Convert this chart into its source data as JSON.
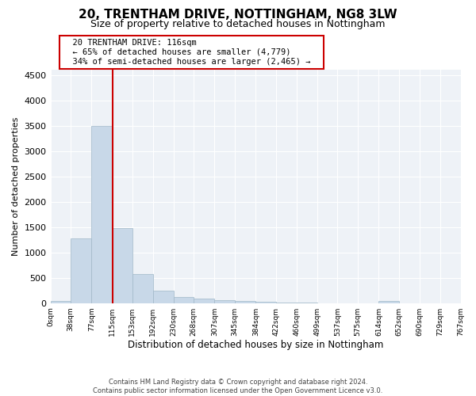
{
  "title": "20, TRENTHAM DRIVE, NOTTINGHAM, NG8 3LW",
  "subtitle": "Size of property relative to detached houses in Nottingham",
  "xlabel": "Distribution of detached houses by size in Nottingham",
  "ylabel": "Number of detached properties",
  "footer_line1": "Contains HM Land Registry data © Crown copyright and database right 2024.",
  "footer_line2": "Contains public sector information licensed under the Open Government Licence v3.0.",
  "annotation_line1": "20 TRENTHAM DRIVE: 116sqm",
  "annotation_line2": "← 65% of detached houses are smaller (4,779)",
  "annotation_line3": "34% of semi-detached houses are larger (2,465) →",
  "property_line_x": 116,
  "bar_edges": [
    0,
    38,
    77,
    115,
    153,
    192,
    230,
    268,
    307,
    345,
    384,
    422,
    460,
    499,
    537,
    575,
    614,
    652,
    690,
    729,
    767
  ],
  "bar_heights": [
    40,
    1270,
    3500,
    1480,
    580,
    240,
    120,
    85,
    55,
    35,
    20,
    10,
    5,
    3,
    2,
    1,
    50,
    0,
    0,
    0
  ],
  "bar_color": "#c8d8e8",
  "bar_edge_color": "#a0b8c8",
  "line_color": "#cc0000",
  "ylim": [
    0,
    4600
  ],
  "yticks": [
    0,
    500,
    1000,
    1500,
    2000,
    2500,
    3000,
    3500,
    4000,
    4500
  ],
  "bg_color": "#eef2f7",
  "annotation_box_color": "#cc0000",
  "title_fontsize": 11,
  "subtitle_fontsize": 9
}
